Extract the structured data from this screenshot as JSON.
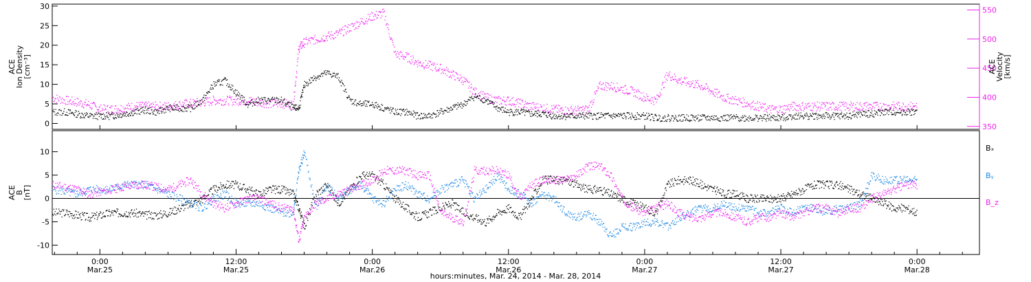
{
  "colors": {
    "black": "#000000",
    "magenta": "#ee22ee",
    "blue": "#1e88e5"
  },
  "xaxis": {
    "label": "hours:minutes, Mar. 24, 2014 - Mar. 28, 2014",
    "range_hours": [
      -4.2,
      77.5
    ],
    "ticks": [
      {
        "hour": 0,
        "time": "0:00",
        "date": "Mar.25"
      },
      {
        "hour": 12,
        "time": "12:00",
        "date": "Mar.25"
      },
      {
        "hour": 24,
        "time": "0:00",
        "date": "Mar.26"
      },
      {
        "hour": 36,
        "time": "12:00",
        "date": "Mar.26"
      },
      {
        "hour": 48,
        "time": "0:00",
        "date": "Mar.27"
      },
      {
        "hour": 60,
        "time": "12:00",
        "date": "Mar.27"
      },
      {
        "hour": 72,
        "time": "0:00",
        "date": "Mar.28"
      }
    ]
  },
  "top_panel": {
    "left_label": [
      "ACE",
      "Ion Density",
      "[cm⁻³]"
    ],
    "right_label": [
      "ACE",
      "Velocity",
      "[km/s]"
    ],
    "left_axis": {
      "range": [
        -1.5,
        30.5
      ],
      "ticks": [
        0,
        5,
        10,
        15,
        20,
        25,
        30
      ]
    },
    "right_axis": {
      "range": [
        345,
        560
      ],
      "ticks": [
        350,
        400,
        450,
        500,
        550
      ]
    }
  },
  "bottom_panel": {
    "left_label": [
      "ACE",
      "B",
      "[nT]"
    ],
    "axis": {
      "range": [
        -12,
        14.5
      ],
      "ticks": [
        -10,
        -5,
        0,
        5,
        10
      ]
    },
    "legend": [
      {
        "label": "Bₓ",
        "color": "#000000"
      },
      {
        "label": "Bᵧ",
        "color": "#1e88e5"
      },
      {
        "label": "B_z",
        "color": "#ee22ee"
      }
    ]
  },
  "chart_data": [
    {
      "type": "scatter",
      "x_units": "hours since Mar. 25, 2014 0:00",
      "series": [
        {
          "axis": "left",
          "color": "#000000",
          "x": [
            -4.2,
            -3,
            -2,
            -1,
            0,
            1,
            2,
            3,
            4,
            5,
            6,
            7,
            8,
            9,
            10,
            11,
            12,
            13,
            14,
            15,
            16,
            17,
            17.5,
            18,
            19,
            20,
            21,
            22,
            23,
            24,
            25,
            26,
            27,
            28,
            29,
            30,
            31,
            32,
            33,
            34,
            35,
            36,
            37,
            38,
            39,
            40,
            41,
            42,
            43,
            44,
            45,
            46,
            47,
            48,
            49,
            50,
            51,
            52,
            53,
            54,
            55,
            56,
            57,
            58,
            59,
            60,
            61,
            62,
            63,
            64,
            65,
            66,
            67,
            68,
            69,
            70,
            71,
            72
          ],
          "y": [
            3,
            3,
            2.5,
            2,
            2,
            2,
            2.5,
            3,
            3.5,
            3,
            4,
            4,
            4,
            6,
            10,
            11,
            8,
            5,
            6,
            6,
            6,
            4,
            4,
            10,
            12,
            13,
            12,
            6,
            5,
            5,
            4,
            3,
            3,
            2,
            2,
            3,
            4,
            5,
            7,
            6,
            4,
            3,
            3,
            2.5,
            2.5,
            2,
            2,
            2,
            2,
            2,
            2,
            2,
            2,
            2,
            1.5,
            1.5,
            1.5,
            1.5,
            1.5,
            1.5,
            1.5,
            1.5,
            1.5,
            1.5,
            1.5,
            1.5,
            2,
            2,
            2,
            2,
            2,
            2,
            2.5,
            2.5,
            3,
            3,
            3,
            3
          ]
        },
        {
          "axis": "right",
          "color": "#ee22ee",
          "x": [
            -4.2,
            -3,
            -2,
            -1,
            0,
            1,
            2,
            3,
            4,
            5,
            6,
            7,
            8,
            9,
            10,
            11,
            12,
            13,
            14,
            15,
            16,
            17,
            17.5,
            18,
            19,
            20,
            21,
            22,
            23,
            24,
            25,
            26,
            27,
            28,
            29,
            30,
            31,
            32,
            33,
            34,
            35,
            36,
            37,
            38,
            39,
            40,
            41,
            42,
            43,
            44,
            45,
            46,
            47,
            48,
            49,
            50,
            51,
            52,
            53,
            54,
            55,
            56,
            57,
            58,
            59,
            60,
            61,
            62,
            63,
            64,
            65,
            66,
            67,
            68,
            69,
            70,
            71,
            72
          ],
          "y": [
            400,
            395,
            392,
            388,
            380,
            380,
            382,
            385,
            385,
            385,
            385,
            388,
            390,
            392,
            395,
            395,
            395,
            395,
            392,
            390,
            390,
            388,
            485,
            495,
            500,
            505,
            510,
            520,
            530,
            540,
            545,
            475,
            470,
            460,
            455,
            450,
            440,
            430,
            410,
            400,
            395,
            395,
            390,
            385,
            382,
            380,
            378,
            378,
            380,
            420,
            420,
            415,
            410,
            400,
            395,
            440,
            430,
            425,
            420,
            410,
            400,
            395,
            390,
            385,
            380,
            380,
            385,
            385,
            385,
            385,
            385,
            385,
            385,
            385,
            385,
            385,
            385,
            385
          ]
        }
      ]
    },
    {
      "type": "scatter",
      "x_units": "hours since Mar. 25, 2014 0:00",
      "series": [
        {
          "name": "Bₓ",
          "color": "#000000",
          "x": [
            -4.2,
            -3,
            -2,
            -1,
            0,
            1,
            2,
            3,
            4,
            5,
            6,
            7,
            8,
            9,
            10,
            11,
            12,
            13,
            14,
            15,
            16,
            17,
            17.5,
            18,
            19,
            20,
            21,
            22,
            23,
            24,
            25,
            26,
            27,
            28,
            29,
            30,
            31,
            32,
            33,
            34,
            35,
            36,
            37,
            38,
            39,
            40,
            41,
            42,
            43,
            44,
            45,
            46,
            47,
            48,
            49,
            50,
            51,
            52,
            53,
            54,
            55,
            56,
            57,
            58,
            59,
            60,
            61,
            62,
            63,
            64,
            65,
            66,
            67,
            68,
            69,
            70,
            71,
            72
          ],
          "y": [
            -3,
            -3,
            -3.5,
            -4,
            -3.5,
            -3,
            -3,
            -3,
            -3.5,
            -3.5,
            -3,
            -2,
            -1,
            0,
            2,
            3,
            3,
            2,
            1,
            2,
            2,
            1,
            -2,
            -6,
            1,
            3,
            -1,
            2,
            5,
            5,
            3,
            0,
            -2,
            -4,
            -3,
            -2,
            -1,
            -3,
            -4,
            -5,
            -3,
            -2,
            -4,
            0,
            4,
            4,
            4,
            3,
            2,
            2,
            1,
            0,
            -1,
            -2,
            -3,
            3,
            4,
            4,
            3,
            2,
            1,
            1,
            0,
            0,
            0,
            0,
            1,
            2,
            3,
            3,
            3,
            2,
            1,
            0,
            -1,
            -2,
            -2,
            -3
          ]
        },
        {
          "name": "Bᵧ",
          "color": "#1e88e5",
          "x": [
            -4.2,
            -3,
            -2,
            -1,
            0,
            1,
            2,
            3,
            4,
            5,
            6,
            7,
            8,
            9,
            10,
            11,
            12,
            13,
            14,
            15,
            16,
            17,
            17.5,
            18,
            19,
            20,
            21,
            22,
            23,
            24,
            25,
            26,
            27,
            28,
            29,
            30,
            31,
            32,
            33,
            34,
            35,
            36,
            37,
            38,
            39,
            40,
            41,
            42,
            43,
            44,
            45,
            46,
            47,
            48,
            49,
            50,
            51,
            52,
            53,
            54,
            55,
            56,
            57,
            58,
            59,
            60,
            61,
            62,
            63,
            64,
            65,
            66,
            67,
            68,
            69,
            70,
            71,
            72
          ],
          "y": [
            2,
            1.5,
            1,
            2,
            2,
            2,
            3,
            3,
            3,
            2,
            1,
            0,
            -1,
            -2,
            0,
            1,
            -1,
            -1,
            -1,
            -2,
            -3,
            -3,
            6,
            10,
            -2,
            3,
            0,
            2,
            3,
            0,
            -1,
            2,
            3,
            1,
            0,
            2,
            3,
            4,
            0,
            2,
            5,
            2,
            1,
            -1,
            1,
            0,
            -3,
            -4,
            -3,
            -5,
            -8,
            -6,
            -6,
            -5,
            -5,
            -6,
            -4,
            -3,
            -2,
            -2,
            -1,
            -2,
            -2,
            -3,
            -3,
            -2,
            -3,
            -2,
            -2,
            -3,
            -2,
            -2,
            -1,
            5,
            4,
            4,
            4,
            4
          ]
        },
        {
          "name": "B_z",
          "color": "#ee22ee",
          "x": [
            -4.2,
            -3,
            -2,
            -1,
            0,
            1,
            2,
            3,
            4,
            5,
            6,
            7,
            8,
            9,
            10,
            11,
            12,
            13,
            14,
            15,
            16,
            17,
            17.5,
            18,
            19,
            20,
            21,
            22,
            23,
            24,
            25,
            26,
            27,
            28,
            29,
            30,
            31,
            32,
            33,
            34,
            35,
            36,
            37,
            38,
            39,
            40,
            41,
            42,
            43,
            44,
            45,
            46,
            47,
            48,
            49,
            50,
            51,
            52,
            53,
            54,
            55,
            56,
            57,
            58,
            59,
            60,
            61,
            62,
            63,
            64,
            65,
            66,
            67,
            68,
            69,
            70,
            71,
            72
          ],
          "y": [
            3,
            2.5,
            2,
            1,
            1.5,
            2,
            2.5,
            3,
            3,
            2.5,
            2,
            3,
            4,
            1,
            -1,
            -2,
            -1,
            0,
            0,
            -1,
            -2,
            -2,
            -9,
            -4,
            -1,
            0,
            1,
            2,
            3,
            4,
            6,
            6,
            6,
            5,
            5,
            -3,
            -4,
            -5,
            6,
            6,
            6,
            5,
            0,
            3,
            4,
            4,
            4,
            5,
            7,
            7,
            5,
            0,
            -2,
            -3,
            -2,
            -1,
            -3,
            -4,
            -4,
            -3,
            -3,
            -4,
            -5,
            -4,
            -4,
            -3,
            -4,
            -3,
            -2,
            -2,
            -3,
            -2,
            -2,
            0,
            1,
            2,
            3,
            3
          ]
        }
      ]
    }
  ]
}
